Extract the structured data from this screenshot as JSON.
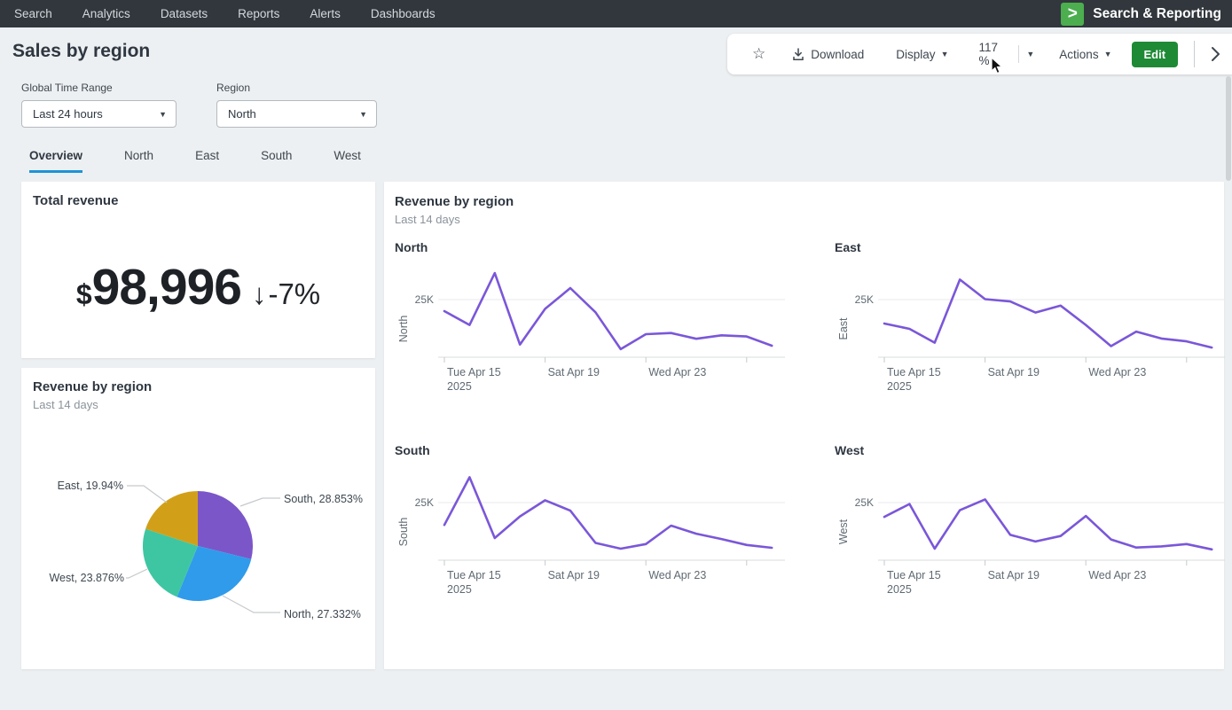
{
  "nav": {
    "items": [
      "Search",
      "Analytics",
      "Datasets",
      "Reports",
      "Alerts",
      "Dashboards"
    ],
    "logo_glyph": ">",
    "app_name": "Search & Reporting"
  },
  "toolbar": {
    "download": "Download",
    "display": "Display",
    "zoom": "117 %",
    "actions": "Actions",
    "edit": "Edit"
  },
  "page": {
    "title": "Sales by region"
  },
  "filters": {
    "time_label": "Global Time Range",
    "time_value": "Last 24 hours",
    "region_label": "Region",
    "region_value": "North"
  },
  "tabs": [
    "Overview",
    "North",
    "East",
    "South",
    "West"
  ],
  "panels": {
    "total_revenue": {
      "title": "Total revenue",
      "currency": "$",
      "value": "98,996",
      "trend_arrow": "↓",
      "trend_value": "-7%"
    },
    "pie": {
      "title": "Revenue by region",
      "subtitle": "Last 14 days"
    },
    "trends": {
      "title": "Revenue by region",
      "subtitle": "Last 14 days"
    }
  },
  "colors": {
    "accent_blue": "#1e93d6",
    "edit_green": "#1f8a36",
    "logo_green": "#4cae4e",
    "nav_bg": "#31373d",
    "line_purple": "#7a57d9",
    "pie_south": "#7b56c9",
    "pie_north": "#2f9bea",
    "pie_west": "#3ec6a2",
    "pie_east": "#d2a018"
  },
  "chart_data": [
    {
      "type": "pie",
      "title": "Revenue by region",
      "subtitle": "Last 14 days",
      "slices": [
        {
          "label": "South",
          "pct": 28.853,
          "pct_display": "28.853%",
          "color": "#7b56c9"
        },
        {
          "label": "North",
          "pct": 27.332,
          "pct_display": "27.332%",
          "color": "#2f9bea"
        },
        {
          "label": "West",
          "pct": 23.876,
          "pct_display": "23.876%",
          "color": "#3ec6a2"
        },
        {
          "label": "East",
          "pct": 19.94,
          "pct_display": "19.94%",
          "color": "#d2a018"
        }
      ]
    },
    {
      "type": "line",
      "title": "Revenue by region",
      "subtitle": "Last 14 days",
      "x": [
        "Tue Apr 15",
        "Wed Apr 16",
        "Thu Apr 17",
        "Fri Apr 18",
        "Sat Apr 19",
        "Sun Apr 20",
        "Mon Apr 21",
        "Tue Apr 22",
        "Wed Apr 23",
        "Thu Apr 24",
        "Fri Apr 25",
        "Sat Apr 26",
        "Sun Apr 27",
        "Mon Apr 28"
      ],
      "x_tick_index": [
        0,
        4,
        8,
        12
      ],
      "x_tick_labels": [
        [
          "Tue Apr 15",
          "2025"
        ],
        [
          "Sat Apr 19"
        ],
        [
          "Wed Apr 23"
        ],
        []
      ],
      "y_tick": "25K",
      "y_unit": "K",
      "ylim": [
        0,
        41
      ],
      "line_color": "#7a57d9",
      "series": [
        {
          "name": "North",
          "values": [
            20,
            14,
            36.5,
            5.5,
            21,
            30,
            19.5,
            3.5,
            10,
            10.5,
            8,
            9.5,
            9,
            5
          ]
        },
        {
          "name": "East",
          "values": [
            14.6,
            12.3,
            6.3,
            33.7,
            25.2,
            24.2,
            19.4,
            22.4,
            14,
            4.8,
            11.1,
            8.1,
            6.9,
            4.2
          ]
        },
        {
          "name": "South",
          "values": [
            15.3,
            36,
            9.6,
            19,
            26,
            21.5,
            7.5,
            5,
            7,
            15,
            11.5,
            9.2,
            6.6,
            5.4
          ]
        },
        {
          "name": "West",
          "values": [
            18.8,
            24.4,
            5,
            21.7,
            26.4,
            11,
            8.1,
            10.5,
            19.2,
            9,
            5.5,
            6,
            7,
            4.7
          ]
        }
      ]
    }
  ]
}
